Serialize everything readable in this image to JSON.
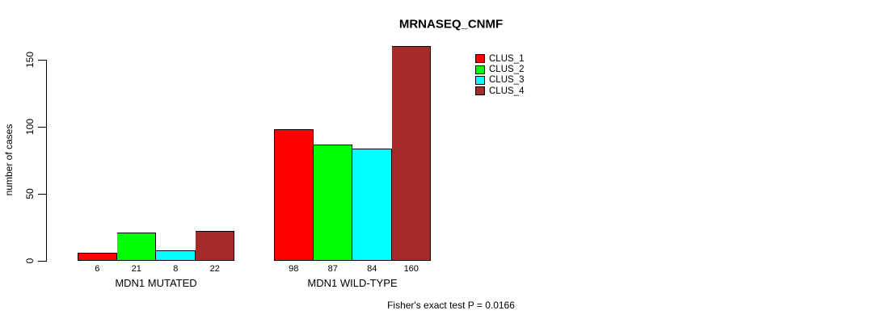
{
  "chart_data": {
    "type": "bar",
    "title": "MRNASEQ_CNMF",
    "ylabel": "number of cases",
    "xlabel": "",
    "yticks": [
      0,
      50,
      100,
      150
    ],
    "ylim": [
      0,
      160
    ],
    "grid": false,
    "legend_position": "top-right",
    "bar_value_labels_shown": true,
    "categories": [
      "MDN1 MUTATED",
      "MDN1 WILD-TYPE"
    ],
    "series": [
      {
        "name": "CLUS_1",
        "color": "#FF0000",
        "values": [
          6,
          98
        ]
      },
      {
        "name": "CLUS_2",
        "color": "#00FF00",
        "values": [
          21,
          87
        ]
      },
      {
        "name": "CLUS_3",
        "color": "#00FFFF",
        "values": [
          8,
          84
        ]
      },
      {
        "name": "CLUS_4",
        "color": "#A52A2A",
        "values": [
          22,
          160
        ]
      }
    ],
    "annotation": "Fisher's exact test P = 0.0166"
  }
}
